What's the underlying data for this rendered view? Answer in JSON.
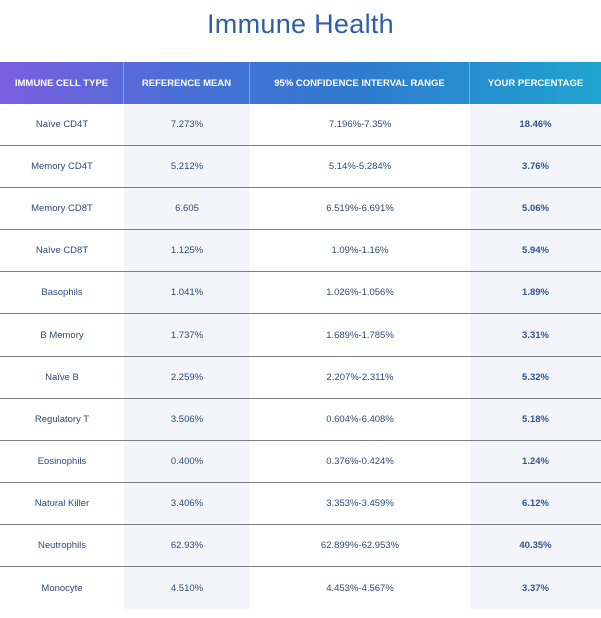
{
  "title": "Immune Health",
  "headers": [
    "IMMUNE CELL TYPE",
    "REFERENCE MEAN",
    "95% CONFIDENCE INTERVAL RANGE",
    "YOUR PERCENTAGE"
  ],
  "rows": [
    {
      "type": "Naïve CD4T",
      "mean": "7.273%",
      "range": "7.196%-7.35%",
      "yours": "18.46%"
    },
    {
      "type": "Memory CD4T",
      "mean": "5.212%",
      "range": "5.14%-5.284%",
      "yours": "3.76%"
    },
    {
      "type": "Memory CD8T",
      "mean": "6.605",
      "range": "6.519%-6.691%",
      "yours": "5.06%"
    },
    {
      "type": "Naïve CD8T",
      "mean": "1.125%",
      "range": "1.09%-1.16%",
      "yours": "5.94%"
    },
    {
      "type": "Basophils",
      "mean": "1.041%",
      "range": "1.026%-1.056%",
      "yours": "1.89%"
    },
    {
      "type": "B Memory",
      "mean": "1.737%",
      "range": "1.689%-1.785%",
      "yours": "3.31%"
    },
    {
      "type": "Naïve B",
      "mean": "2.259%",
      "range": "2.207%-2.311%",
      "yours": "5.32%"
    },
    {
      "type": "Regulatory T",
      "mean": "3.506%",
      "range": "0.604%-6.408%",
      "yours": "5.18%"
    },
    {
      "type": "Eosinophils",
      "mean": "0.400%",
      "range": "0.376%-0.424%",
      "yours": "1.24%"
    },
    {
      "type": "Natural Killer",
      "mean": "3.406%",
      "range": "3.353%-3.459%",
      "yours": "6.12%"
    },
    {
      "type": "Neutrophils",
      "mean": "62.93%",
      "range": "62.899%-62.953%",
      "yours": "40.35%"
    },
    {
      "type": "Monocyte",
      "mean": "4.510%",
      "range": "4.453%-4.567%",
      "yours": "3.37%"
    }
  ],
  "colors": {
    "title": "#2f5fa7",
    "header_gradient_start": "#7b5ee0",
    "header_gradient_end": "#1fa4cf",
    "row_text": "#2c4a7c",
    "shaded_column": "#f4f5fb"
  }
}
